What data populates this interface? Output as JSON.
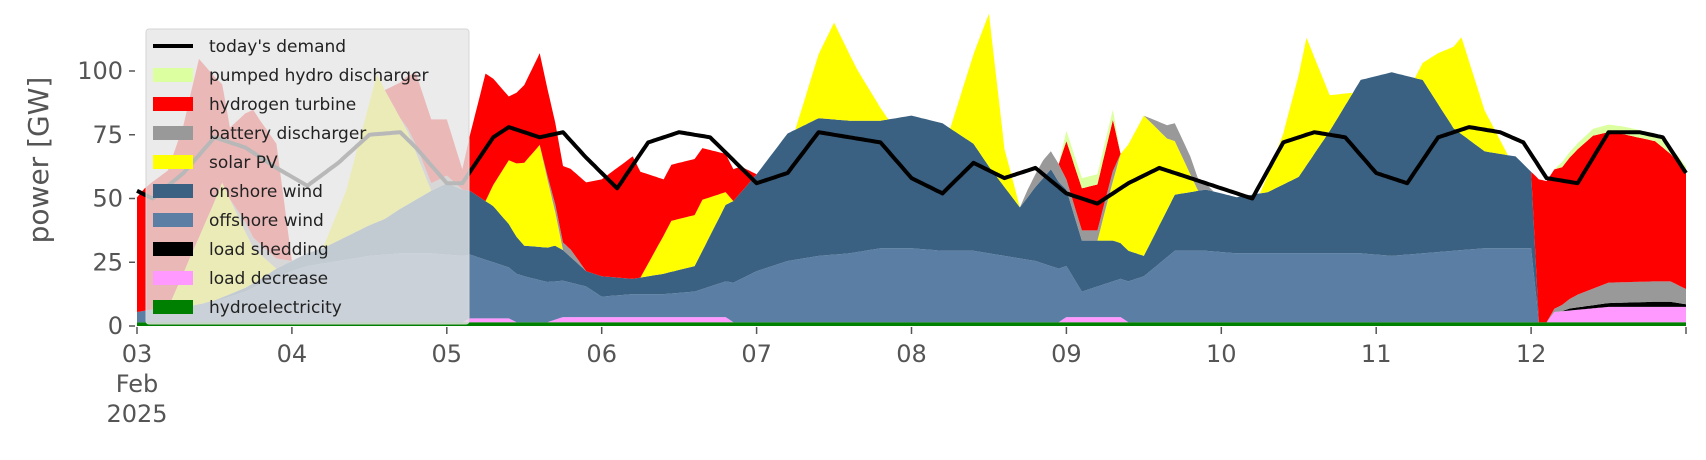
{
  "chart_data": {
    "type": "area",
    "stacked": true,
    "title": "",
    "xlabel": "",
    "ylabel": "power [GW]",
    "ylim": [
      0,
      120
    ],
    "yticks": [
      0,
      25,
      50,
      75,
      100
    ],
    "xlim_days": [
      3,
      13
    ],
    "xtick_days": [
      3,
      4,
      5,
      6,
      7,
      8,
      9,
      10,
      11,
      12,
      13
    ],
    "xtick_labels": [
      "03",
      "04",
      "05",
      "06",
      "07",
      "08",
      "09",
      "10",
      "11",
      "12",
      ""
    ],
    "xtick_sub": [
      "Feb",
      "2025"
    ],
    "grid": false,
    "legend_position": "upper-left",
    "legend_entries": [
      "today's demand",
      "pumped hydro discharger",
      "hydrogen turbine",
      "battery discharger",
      "solar PV",
      "onshore wind",
      "offshore wind",
      "load shedding",
      "load decrease",
      "hydroelectricity"
    ],
    "series": [
      {
        "name": "hydroelectricity",
        "color": "#008000",
        "kind": "area",
        "x": [
          3,
          13
        ],
        "y": [
          1.5,
          1.5
        ]
      },
      {
        "name": "load decrease",
        "color": "#ff99ff",
        "kind": "area",
        "x": [
          3,
          5.1,
          5.15,
          5.4,
          5.45,
          5.65,
          5.75,
          6.2,
          6.5,
          6.8,
          6.85,
          8.95,
          9.0,
          9.35,
          9.4,
          12.1,
          12.15,
          12.5,
          12.9,
          13
        ],
        "y": [
          0,
          0,
          1.5,
          1.5,
          0,
          0,
          2,
          2,
          2,
          2,
          0,
          0,
          2,
          2,
          0,
          0,
          4,
          6,
          6,
          6
        ]
      },
      {
        "name": "load shedding",
        "color": "#000000",
        "kind": "area",
        "x": [
          3,
          12.2,
          12.25,
          12.5,
          12.8,
          12.9,
          13
        ],
        "y": [
          0,
          0,
          0.8,
          1.5,
          2,
          2,
          1
        ]
      },
      {
        "name": "offshore wind",
        "color": "#5b7fa4",
        "kind": "area",
        "x": [
          3,
          3.1,
          3.3,
          3.5,
          3.7,
          3.9,
          4.1,
          4.3,
          4.5,
          4.7,
          4.9,
          5.1,
          5.3,
          5.5,
          5.7,
          5.9,
          6.0,
          6.2,
          6.4,
          6.6,
          6.8,
          7.0,
          7.2,
          7.4,
          7.6,
          7.8,
          8.0,
          8.2,
          8.4,
          8.6,
          8.8,
          9.0,
          9.1,
          9.3,
          9.5,
          9.7,
          9.9,
          10.1,
          10.3,
          10.5,
          10.7,
          10.9,
          11.1,
          11.3,
          11.5,
          11.7,
          11.9,
          12.0,
          12.05,
          13
        ],
        "y": [
          4,
          5,
          6,
          8,
          12,
          18,
          22,
          24,
          26,
          27,
          27,
          26,
          22,
          18,
          15,
          12,
          8,
          9,
          9,
          10,
          14,
          20,
          24,
          26,
          27,
          29,
          29,
          28,
          28,
          26,
          24,
          20,
          10,
          14,
          18,
          28,
          28,
          27,
          27,
          27,
          27,
          27,
          26,
          27,
          28,
          29,
          29,
          29,
          0,
          0
        ]
      },
      {
        "name": "onshore wind",
        "color": "#3b6182",
        "kind": "area",
        "x": [
          3,
          3.4,
          3.8,
          4.2,
          4.6,
          5.0,
          5.3,
          5.5,
          5.7,
          5.9,
          6.0,
          6.2,
          6.4,
          6.6,
          6.8,
          7.0,
          7.2,
          7.4,
          7.6,
          7.8,
          8.0,
          8.2,
          8.4,
          8.5,
          8.7,
          8.9,
          9.0,
          9.1,
          9.3,
          9.5,
          9.7,
          9.9,
          10.1,
          10.3,
          10.5,
          10.7,
          10.9,
          11.1,
          11.3,
          11.5,
          11.7,
          11.9,
          12.0,
          12.05,
          13
        ],
        "y": [
          0,
          0,
          2,
          6,
          14,
          28,
          22,
          12,
          14,
          6,
          8,
          6,
          8,
          10,
          30,
          38,
          50,
          54,
          52,
          50,
          52,
          50,
          42,
          34,
          20,
          38,
          30,
          20,
          16,
          8,
          22,
          24,
          22,
          24,
          30,
          48,
          68,
          72,
          68,
          48,
          38,
          36,
          30,
          0,
          0
        ]
      },
      {
        "name": "solar PV",
        "color": "#ffff00",
        "kind": "area",
        "x": [
          3,
          3.2,
          3.35,
          3.55,
          3.75,
          3.9,
          4.2,
          4.35,
          4.55,
          4.75,
          4.9,
          5.25,
          5.4,
          5.6,
          5.75,
          6.25,
          6.45,
          6.65,
          6.85,
          7.25,
          7.4,
          7.5,
          7.65,
          7.85,
          8.25,
          8.4,
          8.5,
          8.6,
          8.7,
          8.85,
          9.2,
          9.35,
          9.5,
          9.65,
          9.85,
          10.25,
          10.4,
          10.55,
          10.7,
          10.85,
          11.25,
          11.4,
          11.55,
          11.7,
          11.85,
          13
        ],
        "y": [
          0,
          0,
          20,
          45,
          14,
          0,
          0,
          18,
          58,
          28,
          0,
          0,
          25,
          40,
          0,
          0,
          20,
          20,
          0,
          0,
          25,
          38,
          20,
          0,
          0,
          35,
          60,
          15,
          0,
          0,
          0,
          35,
          55,
          28,
          0,
          0,
          20,
          50,
          14,
          0,
          0,
          20,
          38,
          16,
          0,
          0
        ]
      },
      {
        "name": "battery discharger",
        "color": "#999999",
        "kind": "area",
        "x": [
          3,
          3.6,
          3.7,
          3.9,
          4.0,
          4.7,
          4.8,
          5.0,
          5.1,
          5.6,
          5.7,
          5.8,
          5.9,
          8.7,
          8.75,
          8.85,
          8.95,
          9.0,
          9.2,
          9.3,
          9.35,
          9.5,
          9.7,
          9.8,
          9.95,
          10.1,
          12.0,
          12.1,
          12.3,
          12.5,
          12.9,
          13
        ],
        "y": [
          0,
          0,
          4,
          4,
          0,
          0,
          3,
          3,
          0,
          0,
          3,
          3,
          0,
          0,
          3,
          7,
          7,
          4,
          4,
          4,
          0,
          0,
          7,
          7,
          0,
          0,
          0,
          0,
          5,
          8,
          8,
          6
        ]
      },
      {
        "name": "hydrogen turbine",
        "color": "#ff0000",
        "kind": "area",
        "x": [
          3,
          3.05,
          3.3,
          3.4,
          3.6,
          3.75,
          3.9,
          4.0,
          4.6,
          4.7,
          4.8,
          5.0,
          5.1,
          5.25,
          5.4,
          5.6,
          5.75,
          6.0,
          6.2,
          6.4,
          6.6,
          6.8,
          6.9,
          7.0,
          8.95,
          9.0,
          9.2,
          9.3,
          9.35,
          12.0,
          12.05,
          12.2,
          12.4,
          12.6,
          12.8,
          12.9,
          13
        ],
        "y": [
          45,
          48,
          58,
          70,
          28,
          50,
          45,
          0,
          0,
          14,
          28,
          22,
          8,
          50,
          25,
          36,
          30,
          38,
          48,
          22,
          22,
          15,
          10,
          0,
          0,
          15,
          18,
          20,
          0,
          0,
          56,
          54,
          60,
          58,
          55,
          50,
          46
        ]
      },
      {
        "name": "pumped hydro discharger",
        "color": "#dcffa0",
        "kind": "area",
        "x": [
          3,
          8.95,
          9.0,
          9.2,
          9.3,
          9.35,
          12.15,
          12.2,
          12.5,
          12.9,
          13
        ],
        "y": [
          0,
          0,
          4,
          4,
          4,
          0,
          0,
          2,
          3,
          3,
          2
        ]
      },
      {
        "name": "today's demand",
        "color": "#000000",
        "kind": "line",
        "x": [
          3,
          3.1,
          3.3,
          3.5,
          3.7,
          3.9,
          4.1,
          4.3,
          4.5,
          4.7,
          4.8,
          5.0,
          5.1,
          5.3,
          5.4,
          5.6,
          5.75,
          5.9,
          6.1,
          6.3,
          6.5,
          6.7,
          6.9,
          7.0,
          7.2,
          7.4,
          7.6,
          7.8,
          8.0,
          8.2,
          8.4,
          8.6,
          8.8,
          9.0,
          9.2,
          9.4,
          9.6,
          9.8,
          10.0,
          10.2,
          10.4,
          10.6,
          10.8,
          11.0,
          11.2,
          11.4,
          11.6,
          11.8,
          11.95,
          12.1,
          12.3,
          12.5,
          12.7,
          12.85,
          13
        ],
        "y": [
          53,
          50,
          60,
          74,
          70,
          62,
          55,
          64,
          75,
          76,
          70,
          56,
          56,
          74,
          78,
          74,
          76,
          66,
          54,
          72,
          76,
          74,
          62,
          56,
          60,
          76,
          74,
          72,
          58,
          52,
          64,
          58,
          62,
          52,
          48,
          56,
          62,
          58,
          54,
          50,
          72,
          76,
          74,
          60,
          56,
          74,
          78,
          76,
          72,
          58,
          56,
          76,
          76,
          74,
          60
        ]
      }
    ]
  }
}
